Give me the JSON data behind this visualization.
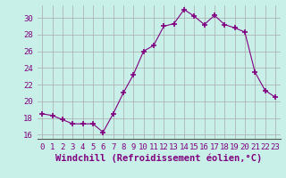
{
  "hours": [
    0,
    1,
    2,
    3,
    4,
    5,
    6,
    7,
    8,
    9,
    10,
    11,
    12,
    13,
    14,
    15,
    16,
    17,
    18,
    19,
    20,
    21,
    22,
    23
  ],
  "values": [
    18.5,
    18.3,
    17.8,
    17.3,
    17.3,
    17.3,
    16.3,
    18.5,
    21.0,
    23.2,
    26.0,
    26.7,
    29.0,
    29.3,
    31.0,
    30.2,
    29.2,
    30.3,
    29.2,
    28.8,
    28.3,
    23.5,
    21.3,
    20.5
  ],
  "line_color": "#800080",
  "marker": "+",
  "marker_size": 4,
  "bg_color": "#c8f0e8",
  "grid_color": "#aaaaaa",
  "xlabel": "Windchill (Refroidissement éolien,°C)",
  "ylabel": "",
  "ylim": [
    15.5,
    31.5
  ],
  "yticks": [
    16,
    18,
    20,
    22,
    24,
    26,
    28,
    30
  ],
  "xticks": [
    0,
    1,
    2,
    3,
    4,
    5,
    6,
    7,
    8,
    9,
    10,
    11,
    12,
    13,
    14,
    15,
    16,
    17,
    18,
    19,
    20,
    21,
    22,
    23
  ],
  "tick_fontsize": 6.5,
  "xlabel_fontsize": 7.5,
  "spine_color": "#555555",
  "title_color": "#800080",
  "tick_color": "#800080"
}
